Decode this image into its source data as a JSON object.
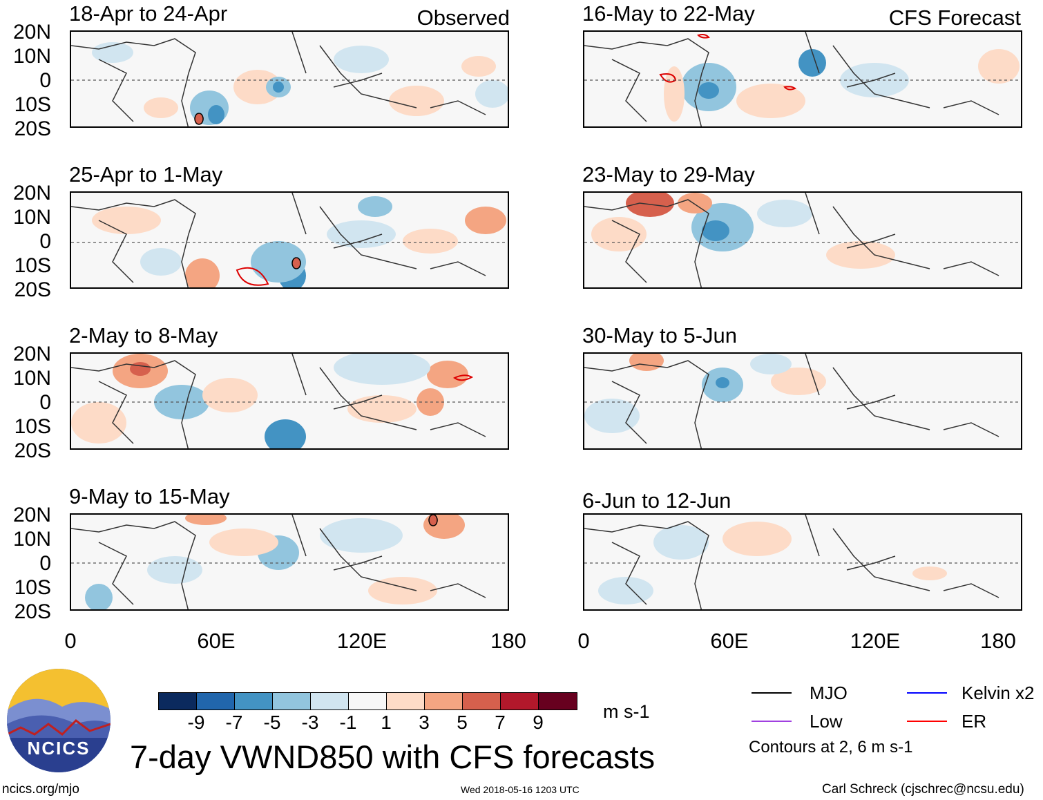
{
  "panels_left": [
    {
      "title": "18-Apr to 24-Apr",
      "side_label": "Observed"
    },
    {
      "title": "25-Apr to 1-May",
      "side_label": ""
    },
    {
      "title": "2-May to 8-May",
      "side_label": ""
    },
    {
      "title": "9-May to 15-May",
      "side_label": ""
    }
  ],
  "panels_right": [
    {
      "title": "16-May to 22-May",
      "side_label": "CFS Forecast"
    },
    {
      "title": "23-May to 29-May",
      "side_label": ""
    },
    {
      "title": "30-May to 5-Jun",
      "side_label": ""
    },
    {
      "title": "6-Jun to 12-Jun",
      "side_label": ""
    }
  ],
  "y_ticks": [
    "20N",
    "10N",
    "0",
    "10S",
    "20S"
  ],
  "x_ticks": [
    "0",
    "60E",
    "120E",
    "180"
  ],
  "colorbar": {
    "colors": [
      "#0b2a5e",
      "#2166ac",
      "#4393c3",
      "#92c5de",
      "#d1e5f0",
      "#f7f7f7",
      "#fddbc7",
      "#f4a582",
      "#d6604d",
      "#b2182b",
      "#67001f"
    ],
    "labels": [
      "-9",
      "-7",
      "-5",
      "-3",
      "-1",
      "1",
      "3",
      "5",
      "7",
      "9"
    ],
    "units": "m s-1"
  },
  "title": "7-day VWND850 with CFS forecasts",
  "legend": {
    "items": [
      {
        "label": "MJO",
        "color": "#000000"
      },
      {
        "label": "Kelvin x2",
        "color": "#0000ff"
      },
      {
        "label": "Low",
        "color": "#a040e0"
      },
      {
        "label": "ER",
        "color": "#ff0000"
      }
    ],
    "note": "Contours at 2, 6 m s-1"
  },
  "logo_text": "NCICS",
  "footer": {
    "url": "ncics.org/mjo",
    "timestamp": "Wed 2018-05-16 1203 UTC",
    "credit": "Carl Schreck (cjschrec@ncsu.edu)"
  }
}
